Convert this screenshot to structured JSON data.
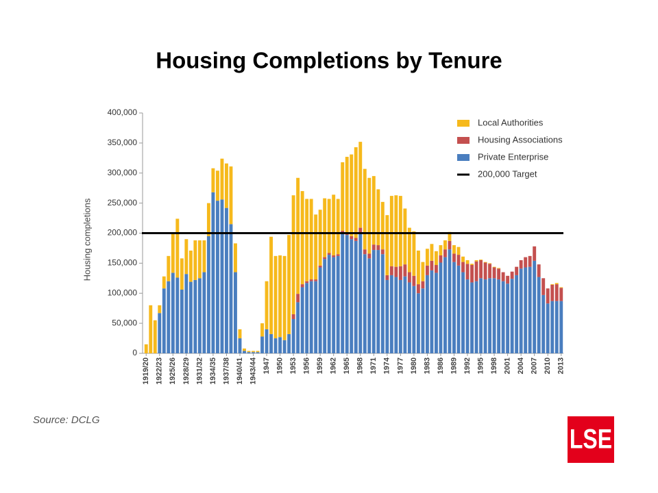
{
  "chart_data": {
    "type": "bar",
    "stacked": true,
    "title": "Housing Completions by Tenure",
    "y_label": "Housing completions",
    "source": "Source: DCLG",
    "logo": "LSE",
    "categories": [
      "1919/20",
      null,
      null,
      "1922/23",
      null,
      null,
      "1925/26",
      null,
      null,
      "1928/29",
      null,
      null,
      "1931/32",
      null,
      null,
      "1934/35",
      null,
      null,
      "1937/38",
      null,
      null,
      "1940/41",
      null,
      null,
      "1943/44",
      null,
      null,
      "1947",
      null,
      null,
      "1950",
      null,
      null,
      "1953",
      null,
      null,
      "1956",
      null,
      null,
      "1959",
      null,
      null,
      "1962",
      null,
      null,
      "1965",
      null,
      null,
      "1968",
      null,
      null,
      "1971",
      null,
      null,
      "1974",
      null,
      null,
      "1977",
      null,
      null,
      "1980",
      null,
      null,
      "1983",
      null,
      null,
      "1986",
      null,
      null,
      "1989",
      null,
      null,
      "1992",
      null,
      null,
      "1995",
      null,
      null,
      "1998",
      null,
      null,
      "2001",
      null,
      null,
      "2004",
      null,
      null,
      "2007",
      null,
      null,
      "2010",
      null,
      null,
      "2013"
    ],
    "series": [
      {
        "name": "Private Enterprise",
        "color": "#4a7ebf",
        "values": [
          0,
          0,
          0,
          67000,
          108000,
          120000,
          134000,
          126000,
          106000,
          132000,
          119000,
          122000,
          125000,
          135000,
          195000,
          268000,
          254000,
          256000,
          242000,
          215000,
          135000,
          25000,
          4000,
          2000,
          2000,
          2000,
          28000,
          40000,
          32000,
          25000,
          27000,
          22000,
          32000,
          57000,
          85000,
          110000,
          117000,
          120000,
          120000,
          143000,
          157000,
          164000,
          160000,
          162000,
          200000,
          197000,
          190000,
          187000,
          201000,
          165000,
          158000,
          172000,
          172000,
          165000,
          122000,
          130000,
          127000,
          122000,
          128000,
          118000,
          112000,
          100000,
          108000,
          130000,
          138000,
          134000,
          151000,
          160000,
          173000,
          152000,
          146000,
          135000,
          123000,
          118000,
          120000,
          125000,
          123000,
          125000,
          125000,
          123000,
          120000,
          116000,
          124000,
          130000,
          141000,
          143000,
          144000,
          154000,
          127000,
          97000,
          83000,
          87000,
          87000,
          87000
        ]
      },
      {
        "name": "Housing Associations",
        "color": "#c4504f",
        "values": [
          0,
          0,
          0,
          0,
          0,
          0,
          0,
          0,
          0,
          0,
          0,
          0,
          0,
          0,
          0,
          0,
          0,
          0,
          0,
          0,
          0,
          0,
          0,
          0,
          0,
          0,
          0,
          0,
          0,
          0,
          0,
          0,
          0,
          8000,
          14000,
          5000,
          3000,
          3000,
          3000,
          3000,
          3000,
          3000,
          3000,
          3000,
          4000,
          4000,
          5000,
          5000,
          8000,
          8000,
          8000,
          9000,
          8000,
          8000,
          8000,
          15000,
          17000,
          23000,
          20000,
          17000,
          17000,
          15000,
          12000,
          16000,
          16000,
          13000,
          12000,
          13000,
          14000,
          14000,
          18000,
          17000,
          26000,
          29000,
          33000,
          30000,
          28000,
          24000,
          18000,
          18000,
          15000,
          13000,
          12000,
          14000,
          14000,
          17000,
          18000,
          24000,
          21000,
          28000,
          25000,
          27000,
          28000,
          22000
        ]
      },
      {
        "name": "Local Authorities",
        "color": "#f6b91c",
        "values": [
          15000,
          80000,
          55000,
          13000,
          20000,
          42000,
          66000,
          98000,
          52000,
          58000,
          52000,
          66000,
          63000,
          53000,
          55000,
          40000,
          50000,
          68000,
          74000,
          96000,
          48000,
          15000,
          4000,
          2000,
          2000,
          2000,
          22000,
          80000,
          162000,
          137000,
          136000,
          140000,
          165000,
          198000,
          193000,
          155000,
          137000,
          134000,
          108000,
          93000,
          98000,
          90000,
          101000,
          92000,
          114000,
          126000,
          136000,
          151000,
          143000,
          134000,
          126000,
          114000,
          93000,
          79000,
          100000,
          117000,
          119000,
          117000,
          93000,
          74000,
          74000,
          56000,
          32000,
          28000,
          28000,
          23000,
          17000,
          15000,
          15000,
          14000,
          13000,
          9000,
          6000,
          2000,
          2000,
          1000,
          1000,
          1000,
          1000,
          1000,
          0,
          0,
          0,
          0,
          0,
          0,
          0,
          0,
          0,
          0,
          0,
          1000,
          2000,
          1000
        ]
      }
    ],
    "reference_line": {
      "name": "200,000 Target",
      "value": 200000,
      "color": "#000000"
    },
    "ylim": [
      0,
      400000
    ],
    "yticks": [
      0,
      {
        "value": 50000,
        "label": "50,000"
      },
      {
        "value": 100000,
        "label": "100,000"
      },
      {
        "value": 150000,
        "label": "150,000"
      },
      {
        "value": 200000,
        "label": "200,000"
      },
      {
        "value": 250000,
        "label": "250,000"
      },
      {
        "value": 300000,
        "label": "300,000"
      },
      {
        "value": 350000,
        "label": "350,000"
      },
      {
        "value": 400000,
        "label": "400,000"
      }
    ],
    "legend": "top-right"
  }
}
